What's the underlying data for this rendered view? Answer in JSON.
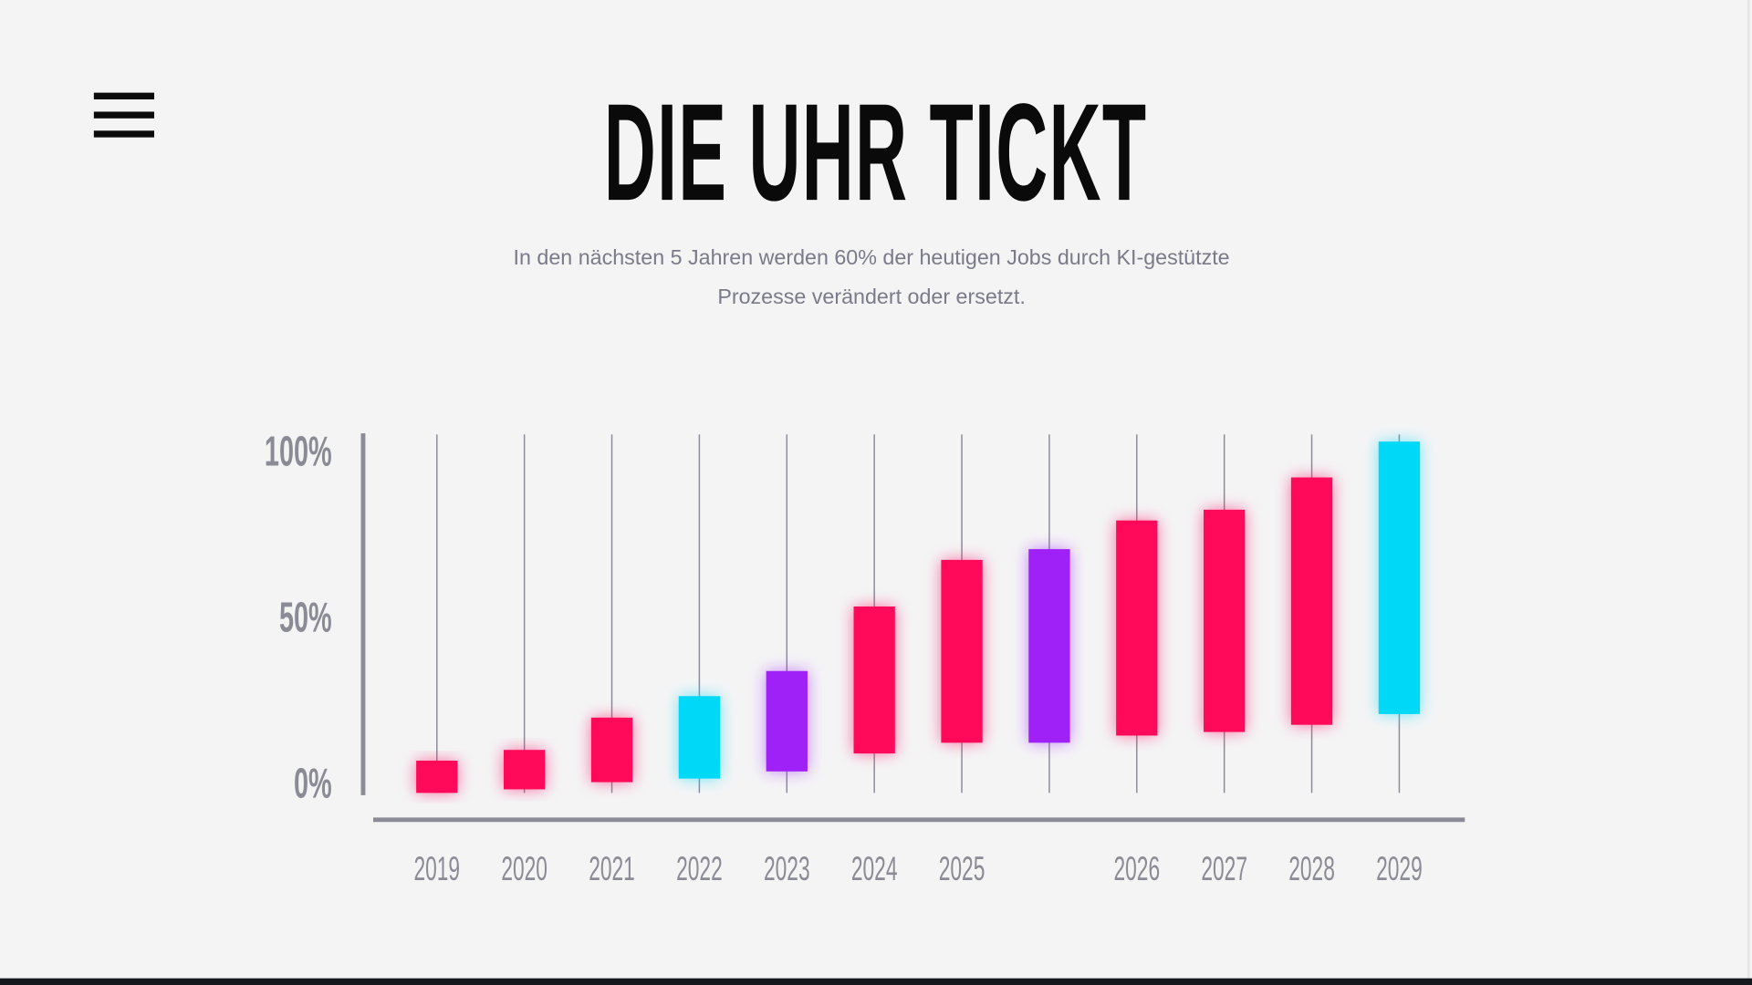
{
  "header": {
    "menu_icon": "hamburger-menu-icon",
    "title": "DIE UHR TICKT",
    "subtitle_line1": "In den nächsten 5 Jahren werden 60% der heutigen Jobs durch KI-gestützte",
    "subtitle_line2": "Prozesse verändert oder ersetzt."
  },
  "chart_data": {
    "type": "candlestick",
    "title": "",
    "xlabel": "",
    "ylabel": "",
    "ylim": [
      0,
      100
    ],
    "y_ticks": [
      "0%",
      "50%",
      "100%"
    ],
    "grid": false,
    "categories": [
      "2019",
      "2020",
      "2021",
      "2022",
      "2023",
      "2024",
      "2025",
      "",
      "2026",
      "2027",
      "2028",
      "2029"
    ],
    "wick": [
      0,
      100
    ],
    "series": [
      {
        "lows": [
          0,
          1,
          3,
          4,
          6,
          11,
          14,
          14,
          16,
          17,
          19,
          22
        ],
        "highs": [
          9,
          12,
          21,
          27,
          34,
          52,
          65,
          68,
          76,
          79,
          88,
          98
        ],
        "colors": [
          "#ff0a5a",
          "#ff0a5a",
          "#ff0a5a",
          "#00d8f8",
          "#a020f8",
          "#ff0a5a",
          "#ff0a5a",
          "#a020f8",
          "#ff0a5a",
          "#ff0a5a",
          "#ff0a5a",
          "#00d8f8"
        ]
      }
    ],
    "axis_color": "#8b8b95"
  }
}
